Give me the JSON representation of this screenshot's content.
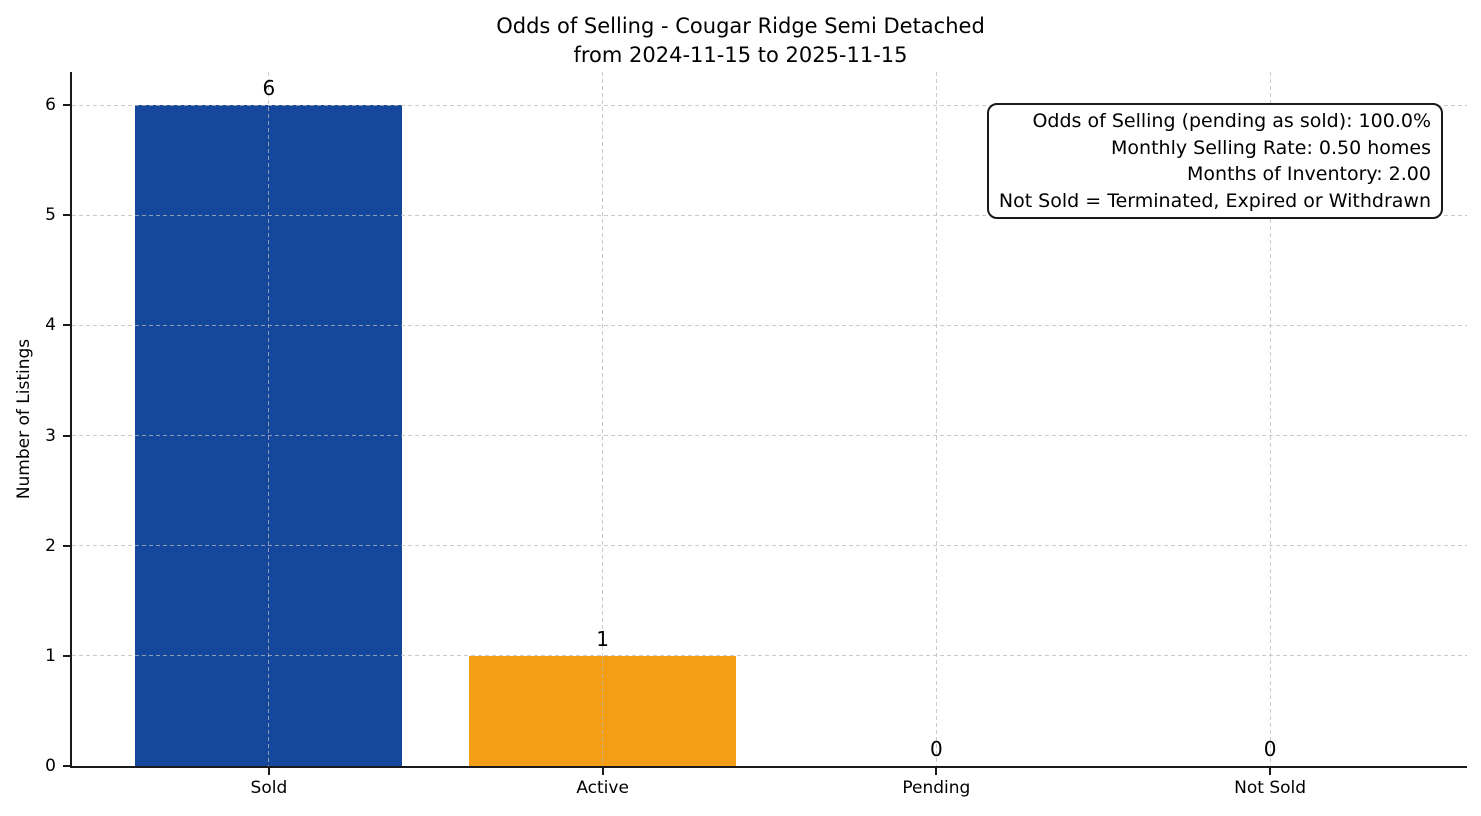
{
  "chart_data": {
    "type": "bar",
    "title": "Odds of Selling - Cougar Ridge Semi Detached",
    "subtitle": "from 2024-11-15 to 2025-11-15",
    "categories": [
      "Sold",
      "Active",
      "Pending",
      "Not Sold"
    ],
    "values": [
      6,
      1,
      0,
      0
    ],
    "value_labels": [
      "6",
      "1",
      "0",
      "0"
    ],
    "bar_colors": [
      "#15489c",
      "#f39e14",
      null,
      null
    ],
    "xlabel": "",
    "ylabel": "Number of Listings",
    "ylim": [
      0,
      6.3
    ],
    "yticks": [
      0,
      1,
      2,
      3,
      4,
      5,
      6
    ],
    "grid": "dashed both axes, light gray, drawn above bars",
    "legend": "none",
    "annotation_box": {
      "position": "top-right",
      "lines": [
        "Odds of Selling (pending as sold): 100.0%",
        "Monthly Selling Rate: 0.50 homes",
        "Months of Inventory: 2.00",
        "Not Sold = Terminated, Expired or Withdrawn"
      ]
    }
  },
  "colors": {
    "sold_bar": "#15489c",
    "active_bar": "#f39e14",
    "axis": "#1a1a1a",
    "grid": "#b9b9b9",
    "background": "#ffffff",
    "text": "#000000"
  }
}
